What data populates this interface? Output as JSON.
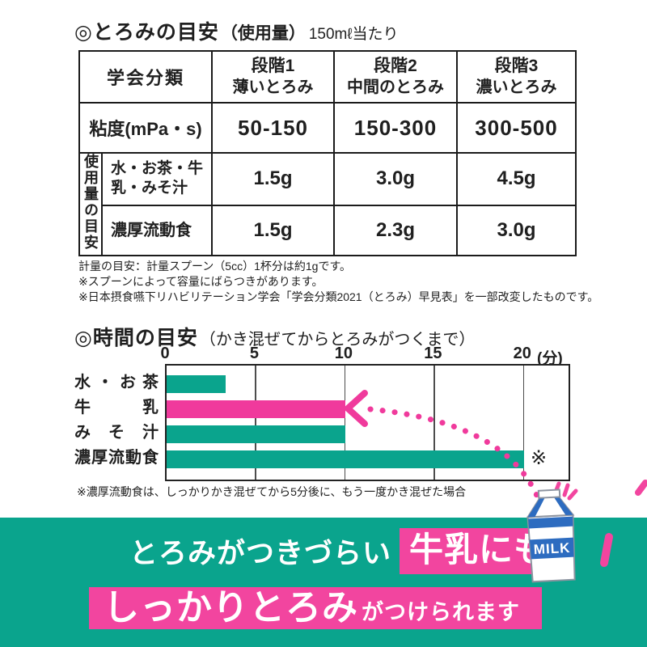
{
  "colors": {
    "teal": "#0aa48d",
    "magenta": "#f03a9c",
    "highlight_pink": "#f2459f",
    "carton_blue": "#2d6cc0",
    "ink": "#1f1f1f"
  },
  "usage_section": {
    "heading": "◎とろみの目安",
    "heading_paren": "（使用量）",
    "heading_suffix": "150mℓ当たり",
    "table": {
      "corner_header": "学会分類",
      "stages": [
        {
          "name": "段階1",
          "desc": "薄いとろみ"
        },
        {
          "name": "段階2",
          "desc": "中間のとろみ"
        },
        {
          "name": "段階3",
          "desc": "濃いとろみ"
        }
      ],
      "viscosity": {
        "label": "粘度(mPa・s)",
        "values": [
          "50-150",
          "150-300",
          "300-500"
        ]
      },
      "usage_group_label": "使用量の目安",
      "usage_rows": [
        {
          "label": "水・お茶・牛乳・みそ汁",
          "values": [
            "1.5g",
            "3.0g",
            "4.5g"
          ]
        },
        {
          "label": "濃厚流動食",
          "values": [
            "1.5g",
            "2.3g",
            "3.0g"
          ]
        }
      ]
    },
    "notes": [
      "計量の目安：計量スプーン（5cc）1杯分は約1gです。",
      "※スプーンによって容量にばらつきがあります。",
      "※日本摂食嚥下リハビリテーション学会「学会分類2021（とろみ）早見表」を一部改変したものです。"
    ]
  },
  "time_section": {
    "heading": "◎時間の目安",
    "heading_paren": "（かき混ぜてからとろみがつくまで）",
    "asterisk_marker": "※",
    "note": "※濃厚流動食は、しっかりかき混ぜてから5分後に、もう一度かき混ぜた場合"
  },
  "chart_data": {
    "type": "bar",
    "orientation": "horizontal",
    "title": "時間の目安（かき混ぜてからとろみがつくまで）",
    "categories": [
      "水・お茶",
      "牛乳",
      "みそ汁",
      "濃厚流動食"
    ],
    "values": [
      3.3,
      10,
      10,
      20
    ],
    "value_unit": "分",
    "xlabel": "(分)",
    "xlim": [
      0,
      22.5
    ],
    "ticks": [
      0,
      5,
      10,
      15,
      20
    ],
    "grid": true,
    "legend": false,
    "bar_colors": [
      "#0aa48d",
      "#f03a9c",
      "#0aa48d",
      "#0aa48d"
    ],
    "annotations": {
      "arrow_points_to": "牛乳",
      "asterisk_marker": "※",
      "asterisk_on": "濃厚流動食"
    }
  },
  "banner": {
    "line1_plain": "とろみがつきづらい",
    "line1_highlight": "牛乳にも",
    "line2_highlight_big": "しっかりとろみ",
    "line2_highlight_small": "がつけられます",
    "milk_carton_label": "MILK"
  }
}
